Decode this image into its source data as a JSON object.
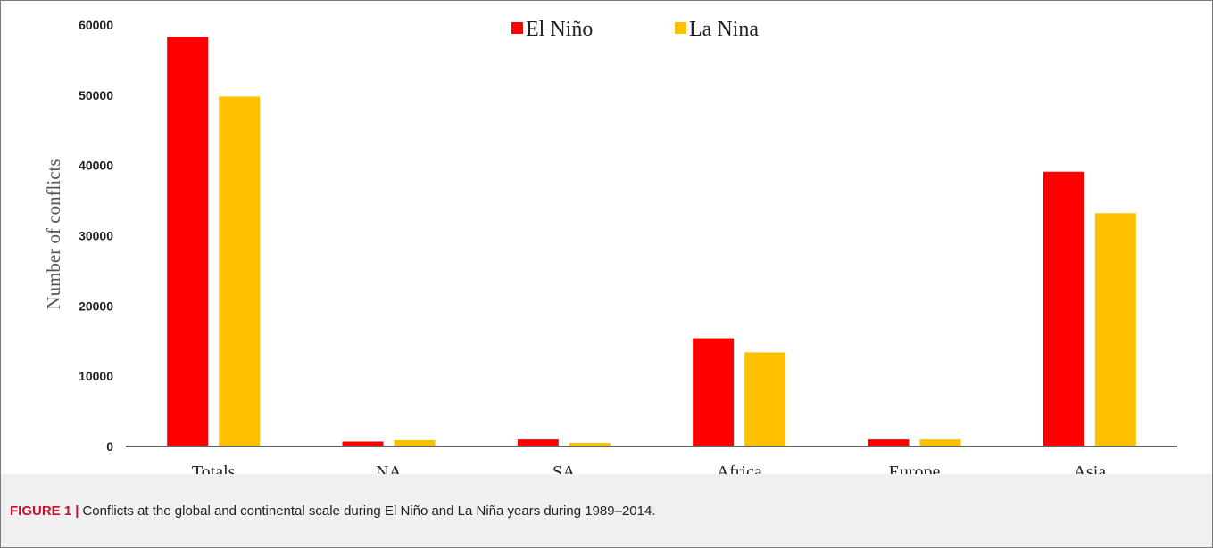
{
  "caption": {
    "label": "FIGURE 1",
    "separator": "|",
    "text": "Conflicts at the global and continental scale during El Niño and La Niña years during 1989–2014."
  },
  "colors": {
    "el_nino": "#ff0000",
    "la_nina": "#ffc000",
    "caption_label": "#c8102e"
  },
  "chart_data": {
    "type": "bar",
    "ylabel": "Number of conflicts",
    "xlabel": "",
    "ylim": [
      0,
      60000
    ],
    "yticks": [
      0,
      10000,
      20000,
      30000,
      40000,
      50000,
      60000
    ],
    "grid": false,
    "legend_position": "top-center",
    "categories": [
      "Totals",
      "NA",
      "SA",
      "Africa",
      "Europe",
      "Asia"
    ],
    "series": [
      {
        "name": "El Niño",
        "color": "#ff0000",
        "values": [
          58300,
          700,
          1000,
          15400,
          1000,
          39100
        ]
      },
      {
        "name": "La Nina",
        "color": "#ffc000",
        "values": [
          49800,
          900,
          500,
          13400,
          1000,
          33200
        ]
      }
    ]
  }
}
